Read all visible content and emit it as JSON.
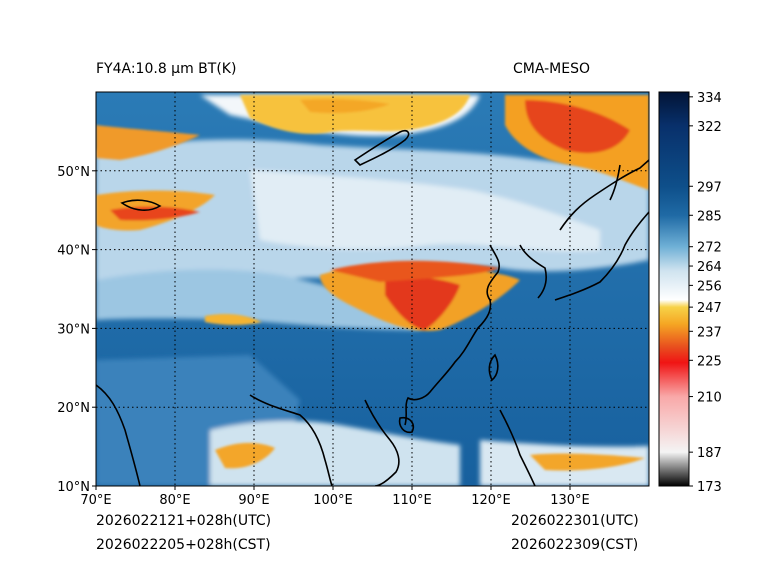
{
  "title_left": "FY4A:10.8 µm BT(K)",
  "title_right": "CMA-MESO",
  "footer": {
    "init_utc": "2026022121+028h(UTC)",
    "init_cst": "2026022205+028h(CST)",
    "valid_utc": "2026022301(UTC)",
    "valid_cst": "2026022309(CST)"
  },
  "map": {
    "lon_range": [
      70,
      140
    ],
    "lat_range": [
      10,
      60
    ],
    "lon_ticks": [
      {
        "value": 70,
        "label": "70°E"
      },
      {
        "value": 80,
        "label": "80°E"
      },
      {
        "value": 90,
        "label": "90°E"
      },
      {
        "value": 100,
        "label": "100°E"
      },
      {
        "value": 110,
        "label": "110°E"
      },
      {
        "value": 120,
        "label": "120°E"
      },
      {
        "value": 130,
        "label": "130°E"
      }
    ],
    "lat_ticks": [
      {
        "value": 10,
        "label": "10°N"
      },
      {
        "value": 20,
        "label": "20°N"
      },
      {
        "value": 30,
        "label": "30°N"
      },
      {
        "value": 40,
        "label": "40°N"
      },
      {
        "value": 50,
        "label": "50°N"
      }
    ],
    "colors": {
      "ocean_clear": "#1f6aa5",
      "land_clear": "#6fa9cf",
      "cloud_cold": "#f4d94a",
      "cloud_colder": "#e8541e",
      "grid": "#000000",
      "coast": "#000000"
    }
  },
  "colorbar": {
    "range": [
      173,
      336
    ],
    "ticks": [
      334,
      322,
      297,
      285,
      272,
      264,
      256,
      247,
      237,
      225,
      210,
      187,
      173
    ],
    "stops": [
      {
        "value": 173,
        "color": "#000000"
      },
      {
        "value": 187,
        "color": "#f4f4f4"
      },
      {
        "value": 210,
        "color": "#f9a8a8"
      },
      {
        "value": 224,
        "color": "#f01414"
      },
      {
        "value": 230,
        "color": "#e84a1e"
      },
      {
        "value": 240,
        "color": "#f5a623"
      },
      {
        "value": 247,
        "color": "#f7d248"
      },
      {
        "value": 250,
        "color": "#ffffff"
      },
      {
        "value": 262,
        "color": "#cfe3ef"
      },
      {
        "value": 272,
        "color": "#6fb0d6"
      },
      {
        "value": 285,
        "color": "#1f6aa5"
      },
      {
        "value": 297,
        "color": "#0e4f8a"
      },
      {
        "value": 322,
        "color": "#08306b"
      },
      {
        "value": 336,
        "color": "#021436"
      }
    ]
  }
}
